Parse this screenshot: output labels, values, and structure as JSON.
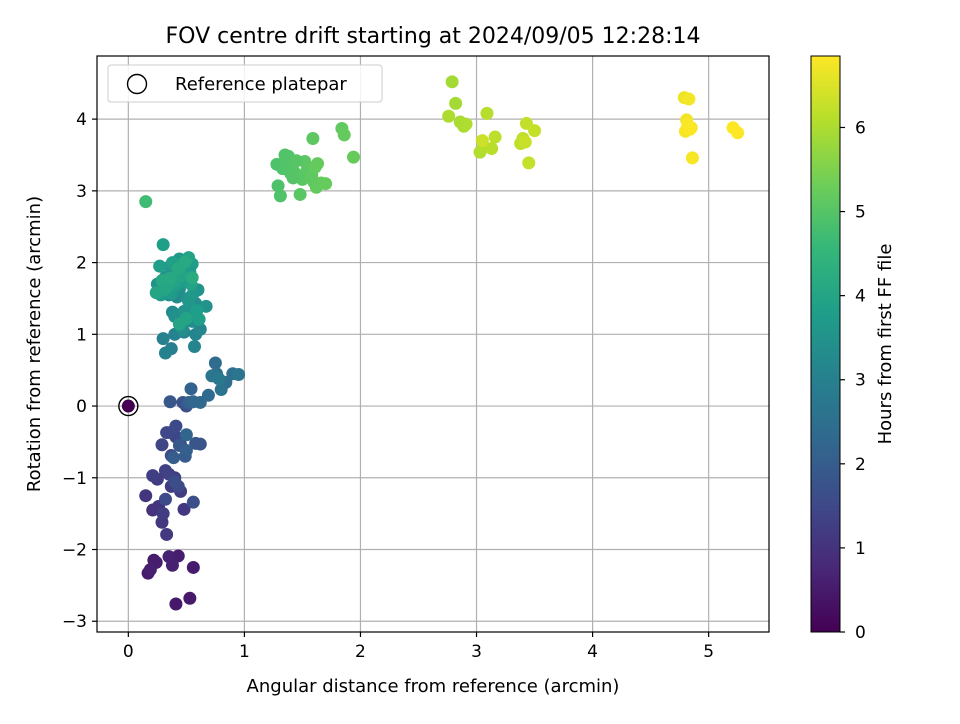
{
  "chart_data": {
    "type": "scatter",
    "title": "FOV centre drift starting at 2024/09/05 12:28:14",
    "xlabel": "Angular distance from reference (arcmin)",
    "ylabel": "Rotation from reference (arcmin)",
    "xlim": [
      -0.27,
      5.52
    ],
    "ylim": [
      -3.15,
      4.88
    ],
    "xticks": [
      0,
      1,
      2,
      3,
      4,
      5
    ],
    "yticks": [
      -3,
      -2,
      -1,
      0,
      1,
      2,
      3,
      4
    ],
    "grid": true,
    "legend": {
      "position": "top-left",
      "entries": [
        "Reference platepar"
      ]
    },
    "colorbar": {
      "label": "Hours from first FF file",
      "range": [
        0,
        6.85
      ],
      "ticks": [
        0,
        1,
        2,
        3,
        4,
        5,
        6
      ],
      "colormap": "viridis"
    },
    "reference_point": {
      "x": 0,
      "y": 0,
      "label": "Reference platepar"
    },
    "series": [
      {
        "x": [
          0.0,
          0.41,
          0.53,
          0.22,
          0.17,
          0.56,
          0.43,
          0.24,
          0.19,
          0.38,
          0.35,
          0.21,
          0.26,
          0.15,
          0.29,
          0.48,
          0.33,
          0.37,
          0.25,
          0.45,
          0.3,
          0.4,
          0.21,
          0.32,
          0.35,
          0.45,
          0.29,
          0.41,
          0.36,
          0.33,
          0.41,
          0.32,
          0.43,
          0.37,
          0.4,
          0.56,
          0.5,
          0.47,
          0.62,
          0.58,
          0.36,
          0.44,
          0.49,
          0.39,
          0.5,
          0.52,
          0.54,
          0.5,
          0.56,
          0.62,
          0.69,
          0.75,
          0.84,
          0.76,
          0.9,
          0.8,
          0.95,
          0.72,
          0.78,
          0.37,
          0.3,
          0.32,
          0.4,
          0.48,
          0.58,
          0.53,
          0.62,
          0.45,
          0.5,
          0.38,
          0.42,
          0.35,
          0.55,
          0.47,
          0.53,
          0.58,
          0.4,
          0.44,
          0.51,
          0.6,
          0.67,
          0.48,
          0.39,
          0.52,
          0.43,
          0.56,
          0.47,
          0.33,
          0.37,
          0.41,
          0.49,
          0.55,
          0.59,
          0.61,
          0.52,
          0.46,
          0.38,
          0.42,
          0.54,
          0.44,
          0.5,
          0.57,
          0.25,
          0.32,
          0.36,
          0.4,
          0.44,
          0.5,
          0.53,
          0.28,
          0.35,
          0.41,
          0.47,
          0.27,
          0.3,
          0.38,
          0.45,
          0.52,
          0.31,
          0.39,
          0.46,
          0.24,
          0.33,
          0.29,
          0.36,
          0.43,
          0.49,
          0.55,
          0.15,
          1.28,
          1.33,
          1.36,
          1.4,
          1.43,
          1.47,
          1.5,
          1.52,
          1.55,
          1.58,
          1.6,
          1.62,
          1.66,
          1.7,
          1.31,
          1.38,
          1.45,
          1.54,
          1.57,
          1.61,
          1.63,
          1.29,
          1.35,
          1.42,
          1.48,
          1.59,
          1.84,
          1.86,
          1.94,
          2.79,
          2.82,
          2.86,
          2.89,
          2.76,
          2.91,
          3.03,
          3.06,
          3.09,
          3.13,
          3.16,
          3.38,
          3.4,
          3.43,
          3.45,
          3.5,
          3.42,
          3.05,
          4.79,
          4.81,
          4.83,
          4.85,
          4.86,
          4.8,
          4.82,
          4.84,
          5.21,
          5.25
        ],
        "y": [
          0.0,
          -2.76,
          -2.68,
          -2.15,
          -2.33,
          -2.25,
          -2.09,
          -2.18,
          -2.28,
          -2.22,
          -2.1,
          -1.45,
          -1.4,
          -1.25,
          -1.62,
          -1.44,
          -1.79,
          -1.12,
          -1.02,
          -1.19,
          -1.5,
          -1.0,
          -0.97,
          -0.9,
          -0.95,
          -0.54,
          -0.54,
          -0.43,
          -0.37,
          -0.37,
          -0.28,
          -1.3,
          -1.12,
          -0.69,
          -1.05,
          -1.34,
          0.0,
          0.05,
          -0.53,
          -0.52,
          0.06,
          -0.55,
          -0.7,
          -0.72,
          -0.62,
          0.05,
          0.24,
          -0.4,
          0.06,
          0.05,
          0.15,
          0.6,
          0.33,
          0.45,
          0.45,
          0.23,
          0.44,
          0.42,
          0.38,
          0.8,
          0.94,
          0.74,
          1.0,
          1.03,
          1.0,
          1.2,
          1.07,
          1.12,
          1.3,
          1.31,
          1.52,
          1.55,
          1.18,
          1.06,
          1.36,
          1.43,
          1.25,
          1.63,
          1.5,
          1.62,
          1.39,
          1.32,
          1.71,
          1.46,
          1.84,
          1.57,
          1.93,
          1.68,
          1.57,
          1.78,
          1.8,
          1.98,
          1.33,
          1.21,
          1.88,
          1.74,
          1.87,
          1.93,
          1.7,
          1.14,
          1.22,
          0.83,
          1.7,
          1.8,
          1.95,
          1.86,
          2.05,
          2.02,
          1.87,
          1.55,
          1.62,
          1.69,
          1.75,
          1.95,
          2.25,
          2.0,
          1.95,
          2.07,
          1.62,
          1.72,
          1.82,
          1.58,
          1.66,
          1.75,
          1.78,
          1.91,
          2.01,
          1.79,
          2.85,
          3.37,
          3.31,
          3.36,
          3.24,
          3.26,
          3.21,
          3.16,
          3.41,
          3.28,
          3.22,
          3.12,
          3.05,
          3.11,
          3.1,
          2.93,
          3.48,
          3.42,
          3.29,
          3.19,
          3.33,
          3.38,
          3.07,
          3.5,
          3.18,
          2.95,
          3.73,
          3.87,
          3.78,
          3.47,
          4.52,
          4.22,
          3.96,
          3.9,
          4.04,
          3.93,
          3.54,
          3.62,
          4.08,
          3.59,
          3.75,
          3.66,
          3.73,
          3.94,
          3.39,
          3.84,
          3.68,
          3.7,
          4.3,
          3.99,
          4.28,
          3.88,
          3.46,
          3.83,
          3.92,
          3.86,
          3.88,
          3.81
        ],
        "hours": [
          0.0,
          0.45,
          0.47,
          0.48,
          0.5,
          0.52,
          0.54,
          0.56,
          0.58,
          0.6,
          0.62,
          1.0,
          1.03,
          1.06,
          1.1,
          1.12,
          1.14,
          1.18,
          1.2,
          1.22,
          1.24,
          1.26,
          1.28,
          1.3,
          1.33,
          1.36,
          1.4,
          1.44,
          1.46,
          1.48,
          1.5,
          1.52,
          1.55,
          1.58,
          1.62,
          1.65,
          1.7,
          1.74,
          1.78,
          1.82,
          1.86,
          1.9,
          1.95,
          2.0,
          2.05,
          2.1,
          2.15,
          2.2,
          2.25,
          2.3,
          2.35,
          2.4,
          2.45,
          2.5,
          2.55,
          2.6,
          2.65,
          2.7,
          2.75,
          2.95,
          3.0,
          3.02,
          3.05,
          3.08,
          3.12,
          3.15,
          3.18,
          3.2,
          3.23,
          3.26,
          3.28,
          3.3,
          3.33,
          3.36,
          3.38,
          3.4,
          3.42,
          3.45,
          3.48,
          3.5,
          3.52,
          3.55,
          3.58,
          3.6,
          3.62,
          3.65,
          3.68,
          3.7,
          3.72,
          3.75,
          3.78,
          3.8,
          3.82,
          3.85,
          3.87,
          3.9,
          3.92,
          3.94,
          3.96,
          3.98,
          4.0,
          3.1,
          3.5,
          3.55,
          3.6,
          3.62,
          3.65,
          3.68,
          3.7,
          3.72,
          3.75,
          3.78,
          3.8,
          3.82,
          3.85,
          3.88,
          3.9,
          3.92,
          3.95,
          3.97,
          4.0,
          4.02,
          4.05,
          4.08,
          4.1,
          4.12,
          4.15,
          4.18,
          4.7,
          4.9,
          4.92,
          4.95,
          4.97,
          5.0,
          5.02,
          5.05,
          5.07,
          5.1,
          5.12,
          5.15,
          5.17,
          5.2,
          5.22,
          4.93,
          4.98,
          5.03,
          5.08,
          5.13,
          5.18,
          5.21,
          4.91,
          4.96,
          5.01,
          5.06,
          5.11,
          5.16,
          5.19,
          5.23,
          5.9,
          5.92,
          5.95,
          5.97,
          6.0,
          6.02,
          6.05,
          6.07,
          6.1,
          6.12,
          6.15,
          6.17,
          6.2,
          6.22,
          6.25,
          6.27,
          6.3,
          6.32,
          6.7,
          6.72,
          6.74,
          6.76,
          6.78,
          6.8,
          6.82,
          6.84,
          6.85,
          6.85
        ]
      }
    ]
  }
}
